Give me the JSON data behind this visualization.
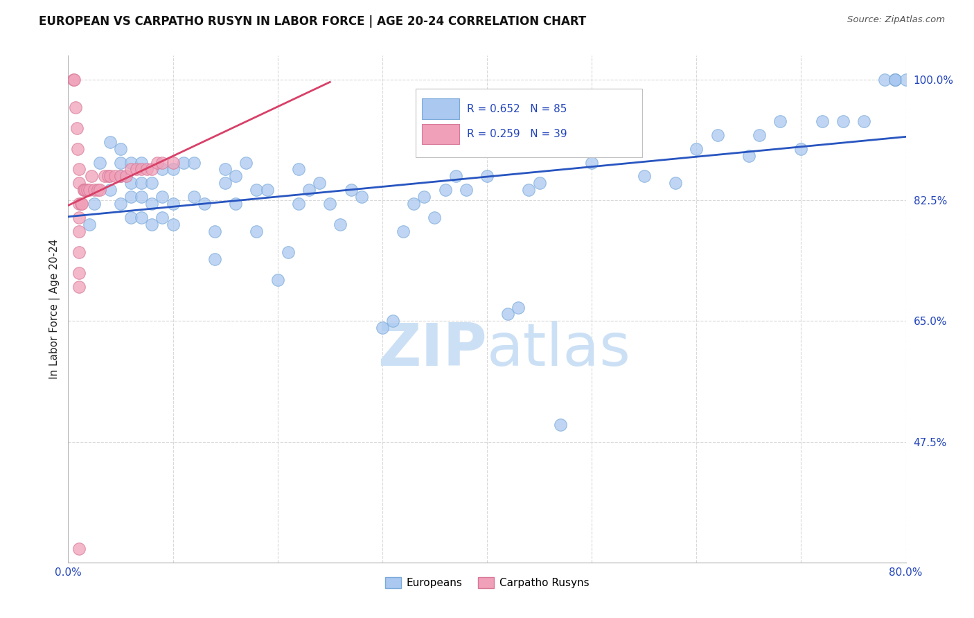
{
  "title": "EUROPEAN VS CARPATHO RUSYN IN LABOR FORCE | AGE 20-24 CORRELATION CHART",
  "source": "Source: ZipAtlas.com",
  "ylabel": "In Labor Force | Age 20-24",
  "xlim": [
    0.0,
    0.8
  ],
  "ylim": [
    0.3,
    1.035
  ],
  "xtick_positions": [
    0.0,
    0.1,
    0.2,
    0.3,
    0.4,
    0.5,
    0.6,
    0.7,
    0.8
  ],
  "ytick_positions": [
    0.475,
    0.65,
    0.825,
    1.0
  ],
  "ytick_labels": [
    "47.5%",
    "65.0%",
    "82.5%",
    "100.0%"
  ],
  "blue_face_color": "#aac8f0",
  "blue_edge_color": "#7aaada",
  "pink_face_color": "#f0a0b8",
  "pink_edge_color": "#d87898",
  "blue_line_color": "#2855c0",
  "pink_line_color": "#d84068",
  "legend_blue_label": "Europeans",
  "legend_pink_label": "Carpatho Rusyns",
  "r_blue": 0.652,
  "n_blue": 85,
  "r_pink": 0.259,
  "n_pink": 39,
  "watermark_zip": "ZIP",
  "watermark_atlas": "atlas",
  "watermark_color": "#cce0f5",
  "grid_color": "#d8d8d8",
  "tick_label_color": "#2244bb",
  "title_color": "#111111",
  "source_color": "#555555",
  "ylabel_color": "#222222",
  "blue_x": [
    0.02,
    0.025,
    0.03,
    0.04,
    0.04,
    0.05,
    0.05,
    0.05,
    0.05,
    0.06,
    0.06,
    0.06,
    0.06,
    0.07,
    0.07,
    0.07,
    0.07,
    0.08,
    0.08,
    0.08,
    0.09,
    0.09,
    0.09,
    0.1,
    0.1,
    0.1,
    0.11,
    0.12,
    0.12,
    0.13,
    0.14,
    0.14,
    0.15,
    0.15,
    0.16,
    0.16,
    0.17,
    0.18,
    0.18,
    0.19,
    0.2,
    0.21,
    0.22,
    0.22,
    0.23,
    0.24,
    0.25,
    0.26,
    0.27,
    0.28,
    0.3,
    0.31,
    0.32,
    0.33,
    0.34,
    0.35,
    0.36,
    0.37,
    0.38,
    0.4,
    0.42,
    0.43,
    0.44,
    0.45,
    0.47,
    0.48,
    0.5,
    0.51,
    0.55,
    0.58,
    0.6,
    0.62,
    0.65,
    0.66,
    0.68,
    0.7,
    0.72,
    0.74,
    0.76,
    0.78,
    0.79,
    0.79,
    0.79,
    0.79,
    0.8
  ],
  "blue_y": [
    0.79,
    0.82,
    0.88,
    0.84,
    0.91,
    0.82,
    0.86,
    0.88,
    0.9,
    0.8,
    0.83,
    0.85,
    0.88,
    0.8,
    0.83,
    0.85,
    0.88,
    0.79,
    0.82,
    0.85,
    0.8,
    0.83,
    0.87,
    0.79,
    0.82,
    0.87,
    0.88,
    0.83,
    0.88,
    0.82,
    0.74,
    0.78,
    0.85,
    0.87,
    0.82,
    0.86,
    0.88,
    0.78,
    0.84,
    0.84,
    0.71,
    0.75,
    0.82,
    0.87,
    0.84,
    0.85,
    0.82,
    0.79,
    0.84,
    0.83,
    0.64,
    0.65,
    0.78,
    0.82,
    0.83,
    0.8,
    0.84,
    0.86,
    0.84,
    0.86,
    0.66,
    0.67,
    0.84,
    0.85,
    0.5,
    0.9,
    0.88,
    0.92,
    0.86,
    0.85,
    0.9,
    0.92,
    0.89,
    0.92,
    0.94,
    0.9,
    0.94,
    0.94,
    0.94,
    1.0,
    1.0,
    1.0,
    1.0,
    1.0,
    1.0
  ],
  "pink_x": [
    0.005,
    0.006,
    0.007,
    0.008,
    0.009,
    0.01,
    0.01,
    0.01,
    0.01,
    0.01,
    0.01,
    0.01,
    0.01,
    0.01,
    0.012,
    0.013,
    0.015,
    0.015,
    0.016,
    0.018,
    0.02,
    0.022,
    0.025,
    0.028,
    0.03,
    0.035,
    0.038,
    0.04,
    0.045,
    0.05,
    0.055,
    0.06,
    0.065,
    0.07,
    0.075,
    0.08,
    0.085,
    0.09,
    0.1
  ],
  "pink_y": [
    1.0,
    1.0,
    0.96,
    0.93,
    0.9,
    0.87,
    0.85,
    0.82,
    0.8,
    0.78,
    0.75,
    0.72,
    0.7,
    0.32,
    0.82,
    0.82,
    0.84,
    0.84,
    0.84,
    0.84,
    0.84,
    0.86,
    0.84,
    0.84,
    0.84,
    0.86,
    0.86,
    0.86,
    0.86,
    0.86,
    0.86,
    0.87,
    0.87,
    0.87,
    0.87,
    0.87,
    0.88,
    0.88,
    0.88
  ]
}
